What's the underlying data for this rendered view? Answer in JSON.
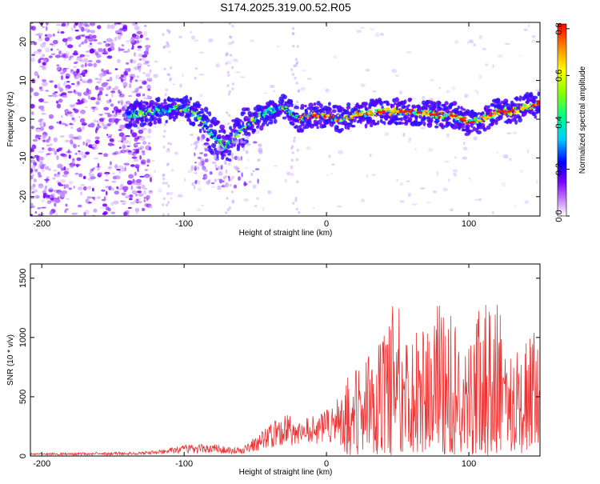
{
  "title": "S174.2025.319.00.52.R05",
  "chart_data": [
    {
      "type": "heatmap",
      "xlabel": "Height of straight line (km)",
      "ylabel": "Frequency (Hz)",
      "xlim": [
        -208,
        150
      ],
      "ylim": [
        -25,
        25
      ],
      "xticks": [
        -200,
        -100,
        0,
        100
      ],
      "yticks": [
        20,
        10,
        0,
        -10,
        -20
      ],
      "colorbar": {
        "label": "Normalized spectral amplitude",
        "range": [
          0.0,
          0.82
        ],
        "ticks": [
          0.0,
          0.2,
          0.4,
          0.6,
          0.8
        ],
        "tick_labels": [
          "0.0",
          "0.2",
          "0.4",
          "0.6",
          "0.8"
        ],
        "colors": [
          "#ffffff",
          "#8800ff",
          "#0000ff",
          "#00ccff",
          "#00ff88",
          "#88ff00",
          "#ffff00",
          "#ff8800",
          "#ff0000"
        ]
      },
      "ridge": {
        "x": [
          -140,
          -120,
          -100,
          -90,
          -80,
          -70,
          -60,
          -50,
          -40,
          -30,
          -20,
          -10,
          0,
          10,
          20,
          40,
          60,
          80,
          90,
          100,
          110,
          120,
          130,
          140,
          150
        ],
        "y": [
          1,
          2,
          3,
          1,
          -4,
          -7,
          -3,
          0,
          2,
          3,
          0,
          1,
          1,
          0,
          1,
          2,
          2,
          1,
          1,
          -1,
          0,
          2,
          2,
          3,
          4
        ]
      }
    },
    {
      "type": "line",
      "xlabel": "Height of straight line (km)",
      "ylabel": "SNR (10 * v/v)",
      "xlim": [
        -208,
        150
      ],
      "ylim": [
        0,
        1620
      ],
      "xticks": [
        -200,
        -100,
        0,
        100
      ],
      "yticks": [
        0,
        500,
        1000,
        1500
      ],
      "line_color": "#ee3333",
      "envelope": {
        "x": [
          -208,
          -150,
          -120,
          -100,
          -80,
          -70,
          -60,
          -40,
          -30,
          -20,
          -10,
          0,
          10,
          20,
          30,
          40,
          50,
          60,
          70,
          80,
          90,
          100,
          110,
          120,
          130,
          140,
          150
        ],
        "y": [
          15,
          25,
          45,
          90,
          110,
          80,
          70,
          260,
          380,
          310,
          380,
          430,
          500,
          800,
          950,
          1150,
          1350,
          1050,
          1100,
          1300,
          1150,
          1050,
          1250,
          1300,
          800,
          950,
          1050
        ]
      }
    }
  ]
}
